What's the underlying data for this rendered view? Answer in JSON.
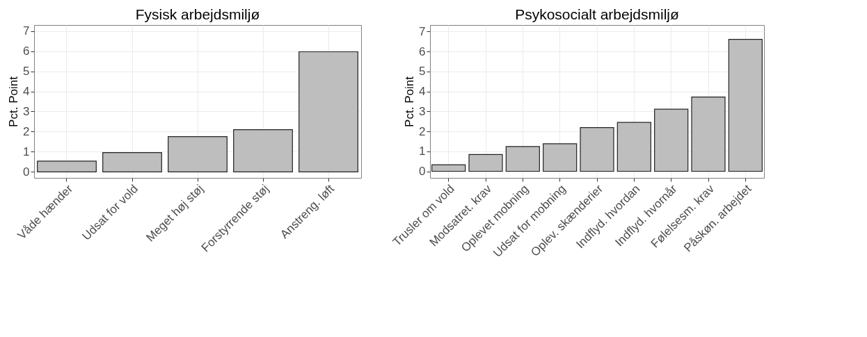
{
  "chart_data": [
    {
      "type": "bar",
      "title": "Fysisk arbejdsmiljø",
      "ylabel": "Pct. Point",
      "categories": [
        "Våde hænder",
        "Udsat for vold",
        "Meget høj støj",
        "Forstyrrende støj",
        "Anstreng. løft"
      ],
      "values": [
        0.53,
        0.96,
        1.75,
        2.1,
        5.97
      ],
      "color": "#bebebe",
      "ylim": [
        -0.3,
        7.3
      ],
      "yticks": [
        0,
        1,
        2,
        3,
        4,
        5,
        6,
        7
      ],
      "grid": true
    },
    {
      "type": "bar",
      "title": "Psykosocialt arbejdsmiljø",
      "ylabel": "Pct. Point",
      "categories": [
        "Trusler om vold",
        "Modsatret. krav",
        "Oplevet mobning",
        "Udsat for mobning",
        "Oplev. skænderier",
        "Indflyd. hvordan",
        "Indflyd. hvornår",
        "Følelsesm. krav",
        "Påskøn. arbejdet"
      ],
      "values": [
        0.33,
        0.84,
        1.24,
        1.38,
        2.19,
        2.45,
        3.11,
        3.72,
        6.61
      ],
      "color": "#bebebe",
      "ylim": [
        -0.33,
        7.33
      ],
      "yticks": [
        0,
        1,
        2,
        3,
        4,
        5,
        6,
        7
      ],
      "grid": true
    }
  ]
}
